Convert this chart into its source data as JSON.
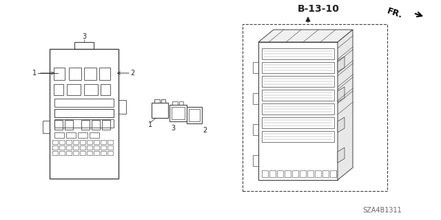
{
  "title": "B-13-10",
  "part_number": "SZA4B1311",
  "bg_color": "#ffffff",
  "line_color": "#404040",
  "dark_color": "#222222",
  "label1": "1",
  "label2": "2",
  "label3": "3",
  "fr_label": "FR."
}
